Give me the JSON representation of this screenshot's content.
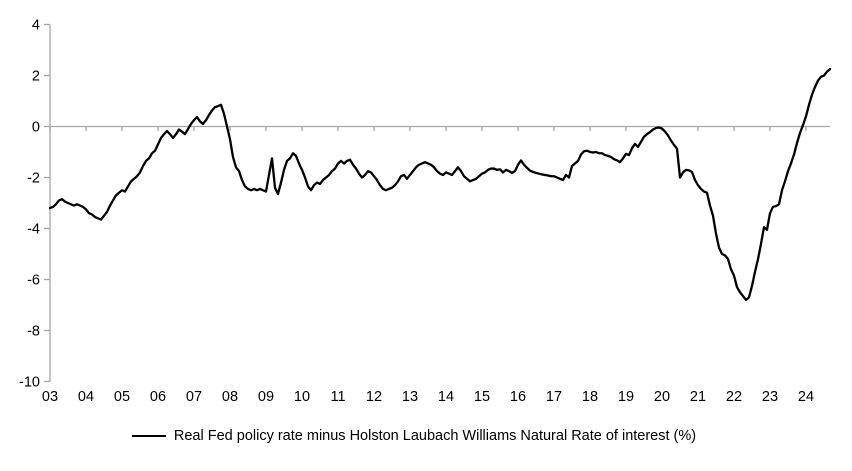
{
  "chart_data": {
    "type": "line",
    "title": "",
    "legend_label": "Real Fed policy rate minus Holston Laubach Williams Natural Rate of interest (%)",
    "legend_position": "bottom-center",
    "line_color": "#000000",
    "axis_color": "#a6a6a6",
    "text_color": "#000000",
    "grid": "zero-line-only",
    "ylim": [
      -10,
      4
    ],
    "y_ticks": [
      4,
      2,
      0,
      -2,
      -4,
      -6,
      -8,
      -10
    ],
    "y_tick_labels": [
      "4",
      "2",
      "0",
      "-2",
      "-4",
      "-6",
      "-8",
      "-10"
    ],
    "x_tick_labels": [
      "03",
      "04",
      "05",
      "06",
      "07",
      "08",
      "09",
      "10",
      "11",
      "12",
      "13",
      "14",
      "15",
      "16",
      "17",
      "18",
      "19",
      "20",
      "21",
      "22",
      "23",
      "24"
    ],
    "x_start_year": 2003,
    "points_per_year": 12,
    "x_end_year": 2024.75,
    "series": [
      {
        "name": "Real Fed policy rate minus Holston Laubach Williams Natural Rate of interest (%)",
        "values": [
          -3.2,
          -3.15,
          -3.05,
          -2.9,
          -2.85,
          -2.95,
          -3.0,
          -3.05,
          -3.1,
          -3.05,
          -3.1,
          -3.15,
          -3.25,
          -3.4,
          -3.45,
          -3.55,
          -3.6,
          -3.65,
          -3.5,
          -3.35,
          -3.1,
          -2.9,
          -2.7,
          -2.6,
          -2.5,
          -2.55,
          -2.35,
          -2.15,
          -2.05,
          -1.95,
          -1.8,
          -1.55,
          -1.35,
          -1.25,
          -1.05,
          -0.95,
          -0.7,
          -0.45,
          -0.3,
          -0.18,
          -0.3,
          -0.45,
          -0.3,
          -0.12,
          -0.2,
          -0.3,
          -0.1,
          0.1,
          0.25,
          0.37,
          0.2,
          0.1,
          0.25,
          0.45,
          0.63,
          0.76,
          0.8,
          0.85,
          0.5,
          0.0,
          -0.5,
          -1.2,
          -1.6,
          -1.75,
          -2.1,
          -2.35,
          -2.45,
          -2.5,
          -2.45,
          -2.5,
          -2.45,
          -2.5,
          -2.55,
          -1.9,
          -1.25,
          -2.4,
          -2.65,
          -2.2,
          -1.7,
          -1.35,
          -1.25,
          -1.05,
          -1.15,
          -1.45,
          -1.7,
          -2.0,
          -2.35,
          -2.5,
          -2.3,
          -2.2,
          -2.25,
          -2.1,
          -2.0,
          -1.9,
          -1.75,
          -1.65,
          -1.45,
          -1.35,
          -1.45,
          -1.35,
          -1.3,
          -1.5,
          -1.65,
          -1.85,
          -2.0,
          -1.9,
          -1.75,
          -1.8,
          -1.95,
          -2.1,
          -2.3,
          -2.45,
          -2.5,
          -2.45,
          -2.4,
          -2.3,
          -2.15,
          -1.95,
          -1.9,
          -2.05,
          -1.9,
          -1.75,
          -1.6,
          -1.5,
          -1.45,
          -1.4,
          -1.45,
          -1.5,
          -1.6,
          -1.75,
          -1.85,
          -1.9,
          -1.8,
          -1.85,
          -1.9,
          -1.75,
          -1.6,
          -1.75,
          -1.95,
          -2.05,
          -2.15,
          -2.1,
          -2.05,
          -1.95,
          -1.85,
          -1.8,
          -1.7,
          -1.65,
          -1.65,
          -1.7,
          -1.68,
          -1.8,
          -1.7,
          -1.75,
          -1.82,
          -1.75,
          -1.5,
          -1.33,
          -1.5,
          -1.62,
          -1.73,
          -1.78,
          -1.82,
          -1.85,
          -1.88,
          -1.9,
          -1.92,
          -1.95,
          -1.95,
          -2.0,
          -2.05,
          -2.1,
          -1.9,
          -2.0,
          -1.55,
          -1.45,
          -1.35,
          -1.1,
          -0.97,
          -0.95,
          -1.0,
          -1.02,
          -1.0,
          -1.05,
          -1.05,
          -1.12,
          -1.15,
          -1.2,
          -1.28,
          -1.33,
          -1.4,
          -1.25,
          -1.07,
          -1.12,
          -0.85,
          -0.68,
          -0.8,
          -0.6,
          -0.4,
          -0.3,
          -0.22,
          -0.12,
          -0.06,
          -0.04,
          -0.08,
          -0.2,
          -0.35,
          -0.55,
          -0.72,
          -0.87,
          -2.0,
          -1.8,
          -1.7,
          -1.72,
          -1.78,
          -2.1,
          -2.3,
          -2.45,
          -2.55,
          -2.6,
          -3.1,
          -3.5,
          -4.2,
          -4.75,
          -5.0,
          -5.05,
          -5.2,
          -5.6,
          -5.85,
          -6.3,
          -6.5,
          -6.65,
          -6.8,
          -6.7,
          -6.25,
          -5.7,
          -5.2,
          -4.6,
          -3.95,
          -4.05,
          -3.4,
          -3.15,
          -3.12,
          -3.05,
          -2.5,
          -2.15,
          -1.75,
          -1.45,
          -1.1,
          -0.65,
          -0.25,
          0.05,
          0.4,
          0.85,
          1.25,
          1.55,
          1.8,
          1.95,
          2.0,
          2.15,
          2.25
        ]
      }
    ]
  }
}
